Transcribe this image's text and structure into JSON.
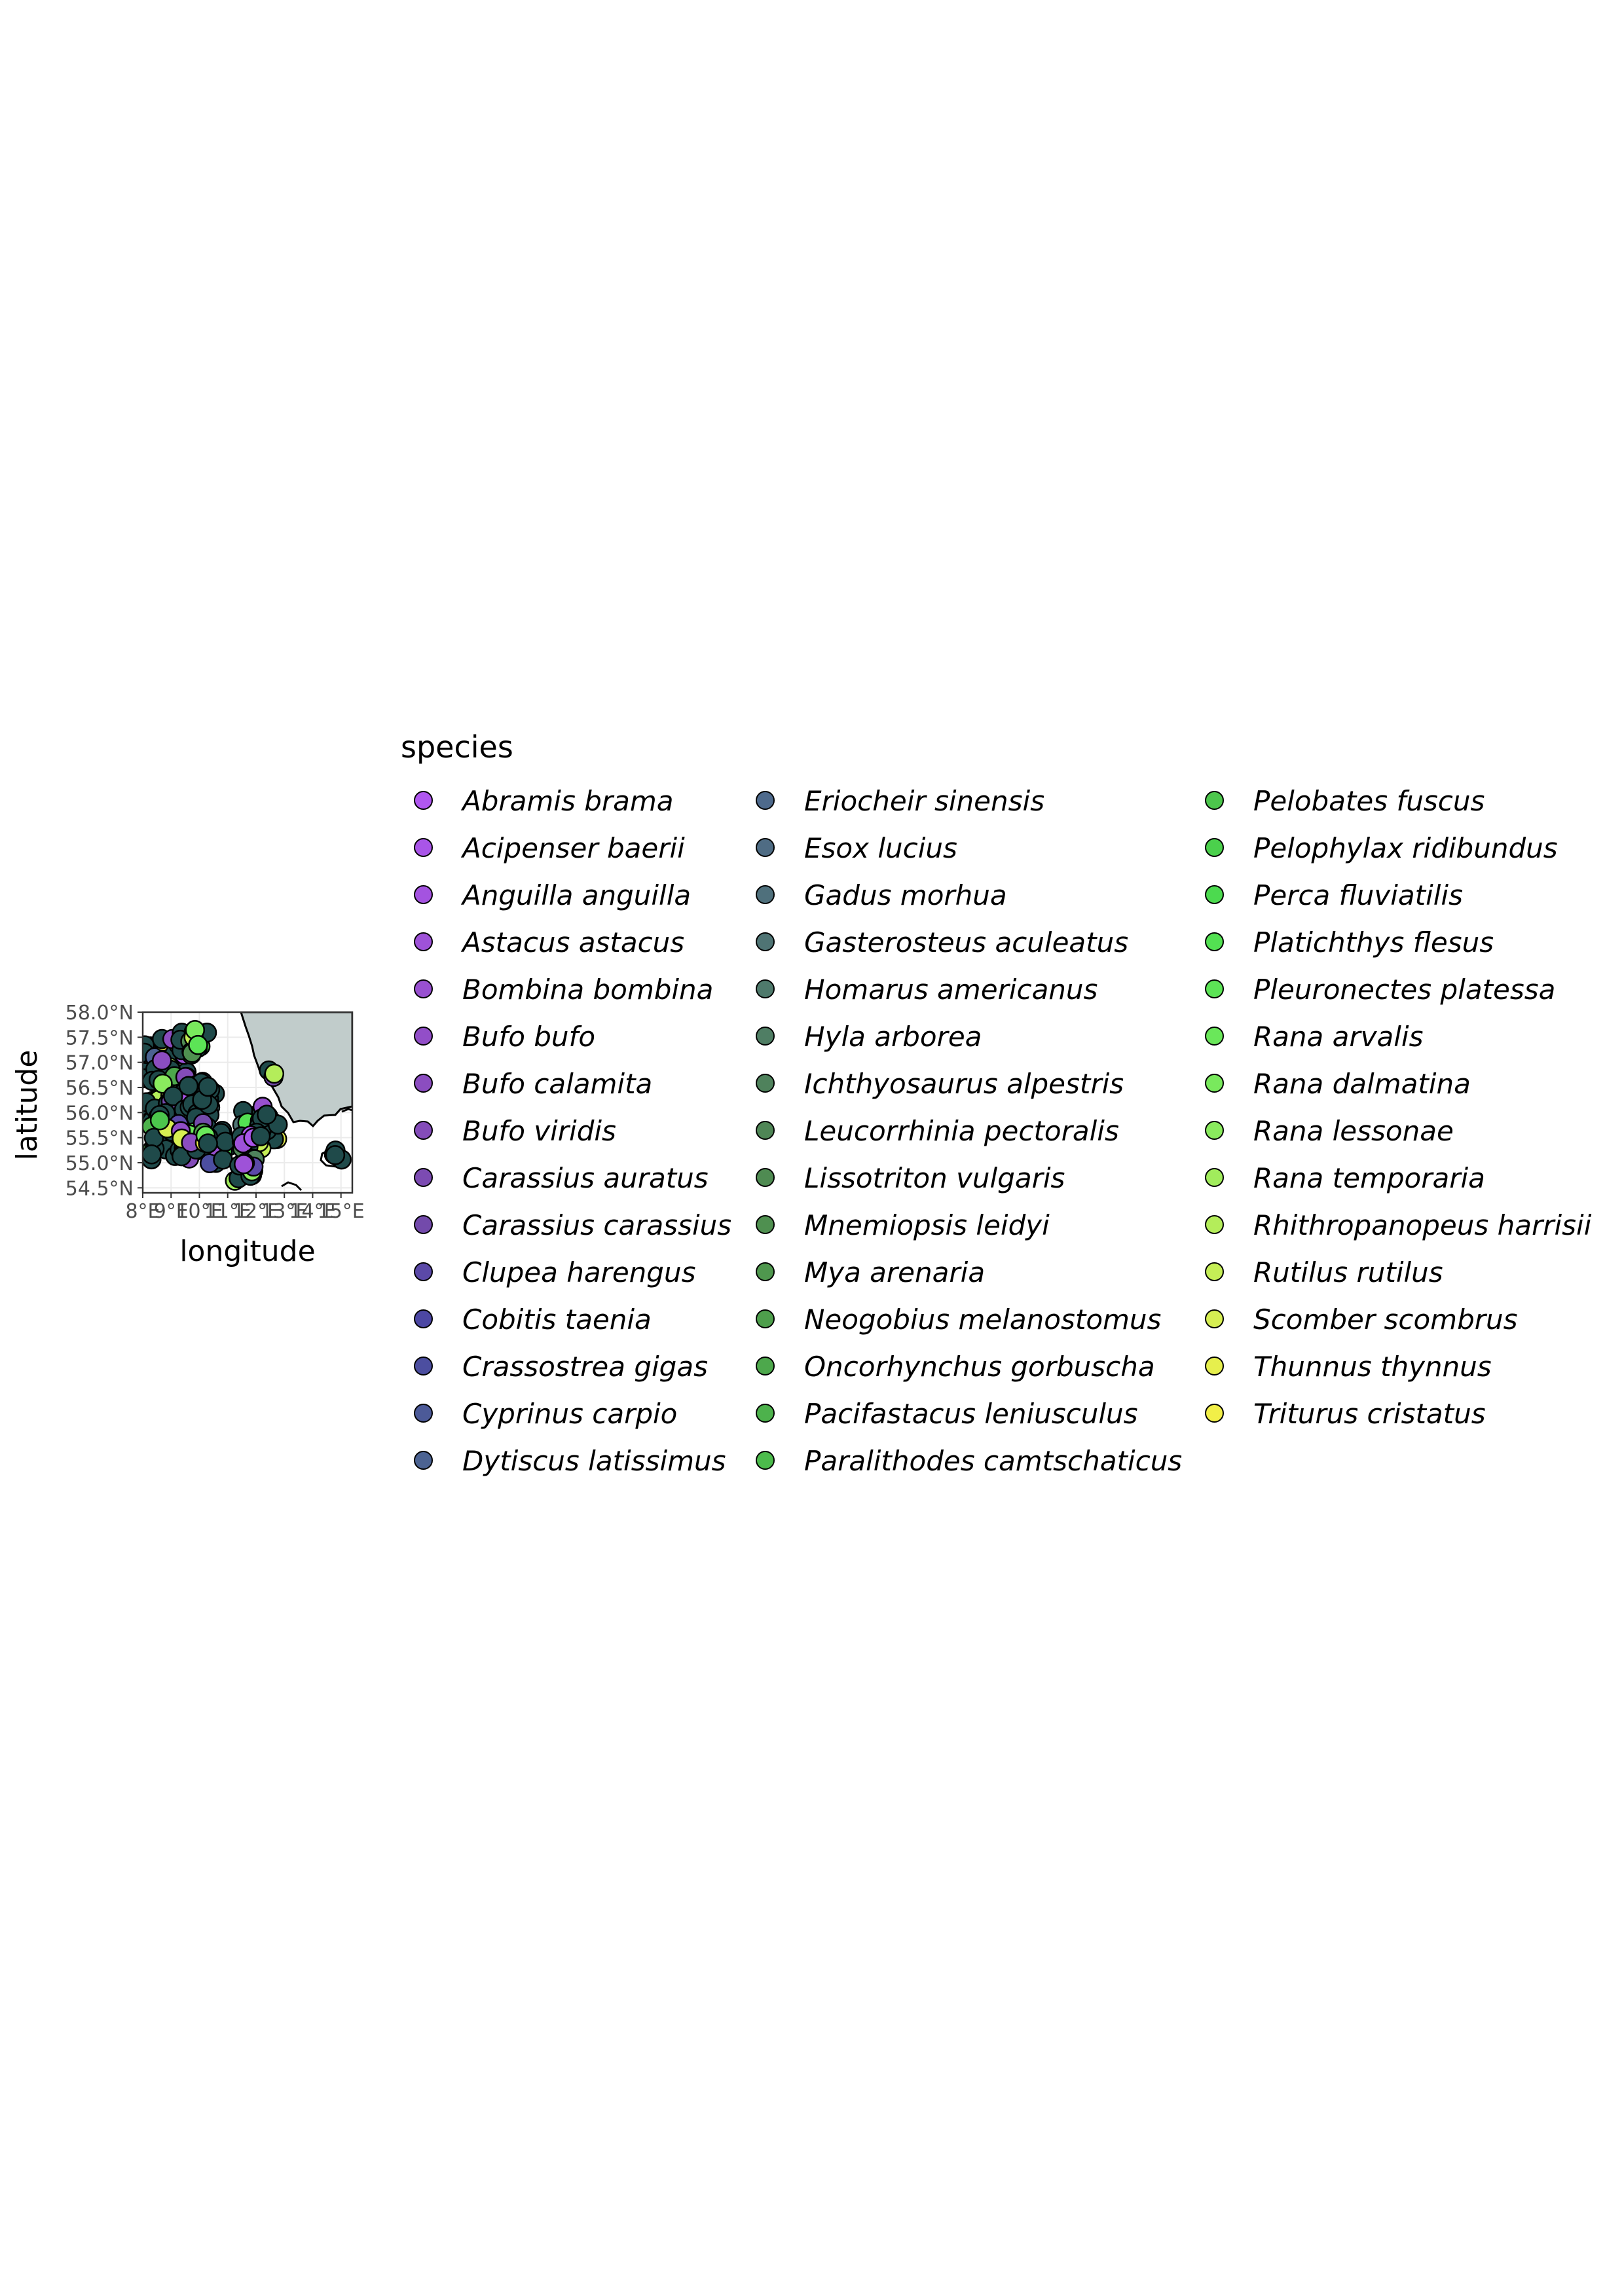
{
  "map": {
    "xlabel": "longitude",
    "ylabel": "latitude",
    "x_ticks": [
      "8°E",
      "9°E",
      "10°E",
      "11°E",
      "12°E",
      "13°E",
      "14°E",
      "15°E"
    ],
    "y_ticks": [
      "54.5°N",
      "55.0°N",
      "55.5°N",
      "56.0°N",
      "56.5°N",
      "57.0°N",
      "57.5°N",
      "58.0°N"
    ],
    "x_range": [
      8.0,
      15.4
    ],
    "y_range": [
      54.4,
      58.0
    ],
    "land_color": "#ffffff",
    "water_color": "#c1cccb",
    "grid_color": "#ebebeb",
    "point_border_color": "#000000"
  },
  "legend": {
    "title": "species",
    "columns": [
      [
        {
          "label": "Abramis brama",
          "color": "#b057f0"
        },
        {
          "label": "Acipenser baerii",
          "color": "#a955e8"
        },
        {
          "label": "Anguilla anguilla",
          "color": "#a453e0"
        },
        {
          "label": "Astacus astacus",
          "color": "#9e52d8"
        },
        {
          "label": "Bombina bombina",
          "color": "#9850d0"
        },
        {
          "label": "Bufo bufo",
          "color": "#924ec8"
        },
        {
          "label": "Bufo calamita",
          "color": "#8b4dc0"
        },
        {
          "label": "Bufo viridis",
          "color": "#844cb9"
        },
        {
          "label": "Carassius auratus",
          "color": "#7c4bb2"
        },
        {
          "label": "Carassius carassius",
          "color": "#734aab"
        },
        {
          "label": "Clupea harengus",
          "color": "#5b49a8"
        },
        {
          "label": "Cobitis taenia",
          "color": "#4c47a4"
        },
        {
          "label": "Crassostrea gigas",
          "color": "#4c4ea0"
        },
        {
          "label": "Cyprinus carpio",
          "color": "#4c5a98"
        },
        {
          "label": "Dytiscus latissimus",
          "color": "#4c6392"
        }
      ],
      [
        {
          "label": "Eriocheir sinensis",
          "color": "#4e6a8c"
        },
        {
          "label": "Esox lucius",
          "color": "#4f6c84"
        },
        {
          "label": "Gadus morhua",
          "color": "#4f707c"
        },
        {
          "label": "Gasterosteus aculeatus",
          "color": "#4f7474"
        },
        {
          "label": "Homarus americanus",
          "color": "#4f7a6c"
        },
        {
          "label": "Hyla arborea",
          "color": "#4f7e64"
        },
        {
          "label": "Ichthyosaurus alpestris",
          "color": "#4f825c"
        },
        {
          "label": "Leucorrhinia pectoralis",
          "color": "#4f8656"
        },
        {
          "label": "Lissotriton vulgaris",
          "color": "#4f8b52"
        },
        {
          "label": "Mnemiopsis leidyi",
          "color": "#4f9050"
        },
        {
          "label": "Mya arenaria",
          "color": "#4f974e"
        },
        {
          "label": "Neogobius melanostomus",
          "color": "#4e9f4c"
        },
        {
          "label": "Oncorhynchus gorbuscha",
          "color": "#4da84c"
        },
        {
          "label": "Pacifastacus leniusculus",
          "color": "#4db24c"
        },
        {
          "label": "Paralithodes camtschaticus",
          "color": "#4cbb4c"
        }
      ],
      [
        {
          "label": "Pelobates fuscus",
          "color": "#4cc64c"
        },
        {
          "label": "Pelophylax ridibundus",
          "color": "#4bd04c"
        },
        {
          "label": "Perca fluviatilis",
          "color": "#4cda4f"
        },
        {
          "label": "Platichthys flesus",
          "color": "#53e152"
        },
        {
          "label": "Pleuronectes platessa",
          "color": "#5ce456"
        },
        {
          "label": "Rana arvalis",
          "color": "#6ae75a"
        },
        {
          "label": "Rana dalmatina",
          "color": "#79e95d"
        },
        {
          "label": "Rana lessonae",
          "color": "#8aeb5e"
        },
        {
          "label": "Rana temporaria",
          "color": "#a1ec5c"
        },
        {
          "label": "Rhithropanopeus harrisii",
          "color": "#b4ed5a"
        },
        {
          "label": "Rutilus rutilus",
          "color": "#c5ee56"
        },
        {
          "label": "Scomber scombrus",
          "color": "#d6ee52"
        },
        {
          "label": "Thunnus thynnus",
          "color": "#e6ef4d"
        },
        {
          "label": "Triturus cristatus",
          "color": "#f2ef48"
        }
      ]
    ]
  }
}
